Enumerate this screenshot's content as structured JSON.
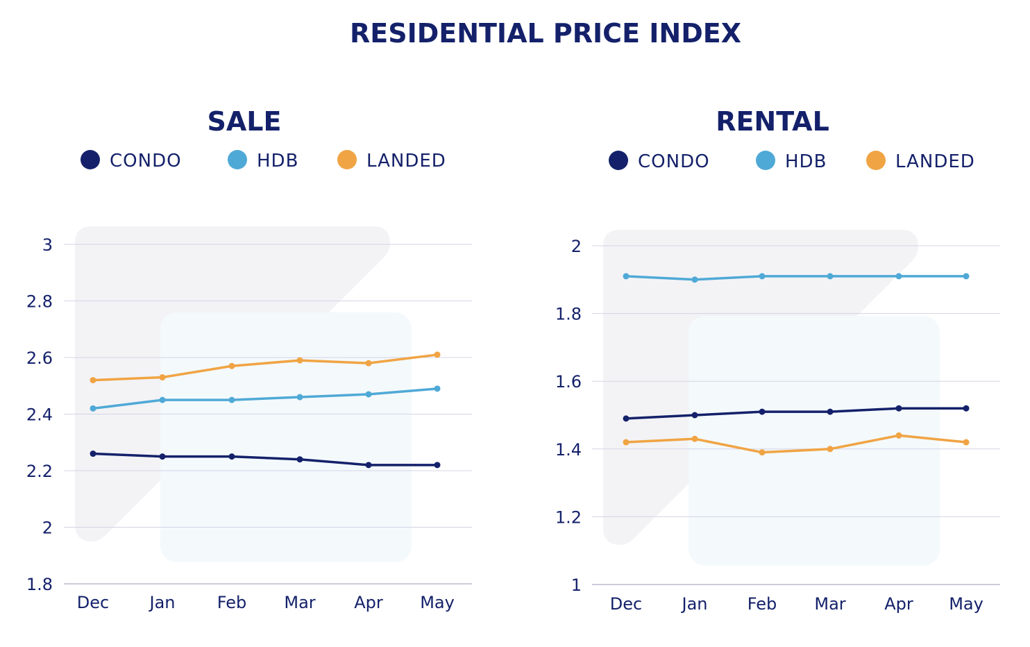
{
  "title": "RESIDENTIAL PRICE INDEX",
  "colors": {
    "CONDO": "#14216a",
    "HDB": "#4fa9d6",
    "LANDED": "#f0a443",
    "text": "#14216a",
    "grid": "#d4d4e6"
  },
  "chart_data": [
    {
      "type": "line",
      "title": "SALE",
      "categories": [
        "Dec",
        "Jan",
        "Feb",
        "Mar",
        "Apr",
        "May"
      ],
      "ylim": [
        1.8,
        3
      ],
      "yticks": [
        "1.8",
        "2",
        "2.2",
        "2.4",
        "2.6",
        "2.8",
        "3"
      ],
      "grid": true,
      "legend_placement": "top",
      "series": [
        {
          "name": "CONDO",
          "values": [
            2.26,
            2.25,
            2.25,
            2.24,
            2.22,
            2.22
          ]
        },
        {
          "name": "HDB",
          "values": [
            2.42,
            2.45,
            2.45,
            2.46,
            2.47,
            2.49
          ]
        },
        {
          "name": "LANDED",
          "values": [
            2.52,
            2.53,
            2.57,
            2.59,
            2.58,
            2.61
          ]
        }
      ]
    },
    {
      "type": "line",
      "title": "RENTAL",
      "categories": [
        "Dec",
        "Jan",
        "Feb",
        "Mar",
        "Apr",
        "May"
      ],
      "ylim": [
        1,
        2
      ],
      "yticks": [
        "1",
        "1.2",
        "1.4",
        "1.6",
        "1.8",
        "2"
      ],
      "grid": true,
      "legend_placement": "top",
      "series": [
        {
          "name": "CONDO",
          "values": [
            1.49,
            1.5,
            1.51,
            1.51,
            1.52,
            1.52
          ]
        },
        {
          "name": "HDB",
          "values": [
            1.91,
            1.9,
            1.91,
            1.91,
            1.91,
            1.91
          ]
        },
        {
          "name": "LANDED",
          "values": [
            1.42,
            1.43,
            1.39,
            1.4,
            1.44,
            1.42
          ]
        }
      ]
    }
  ]
}
